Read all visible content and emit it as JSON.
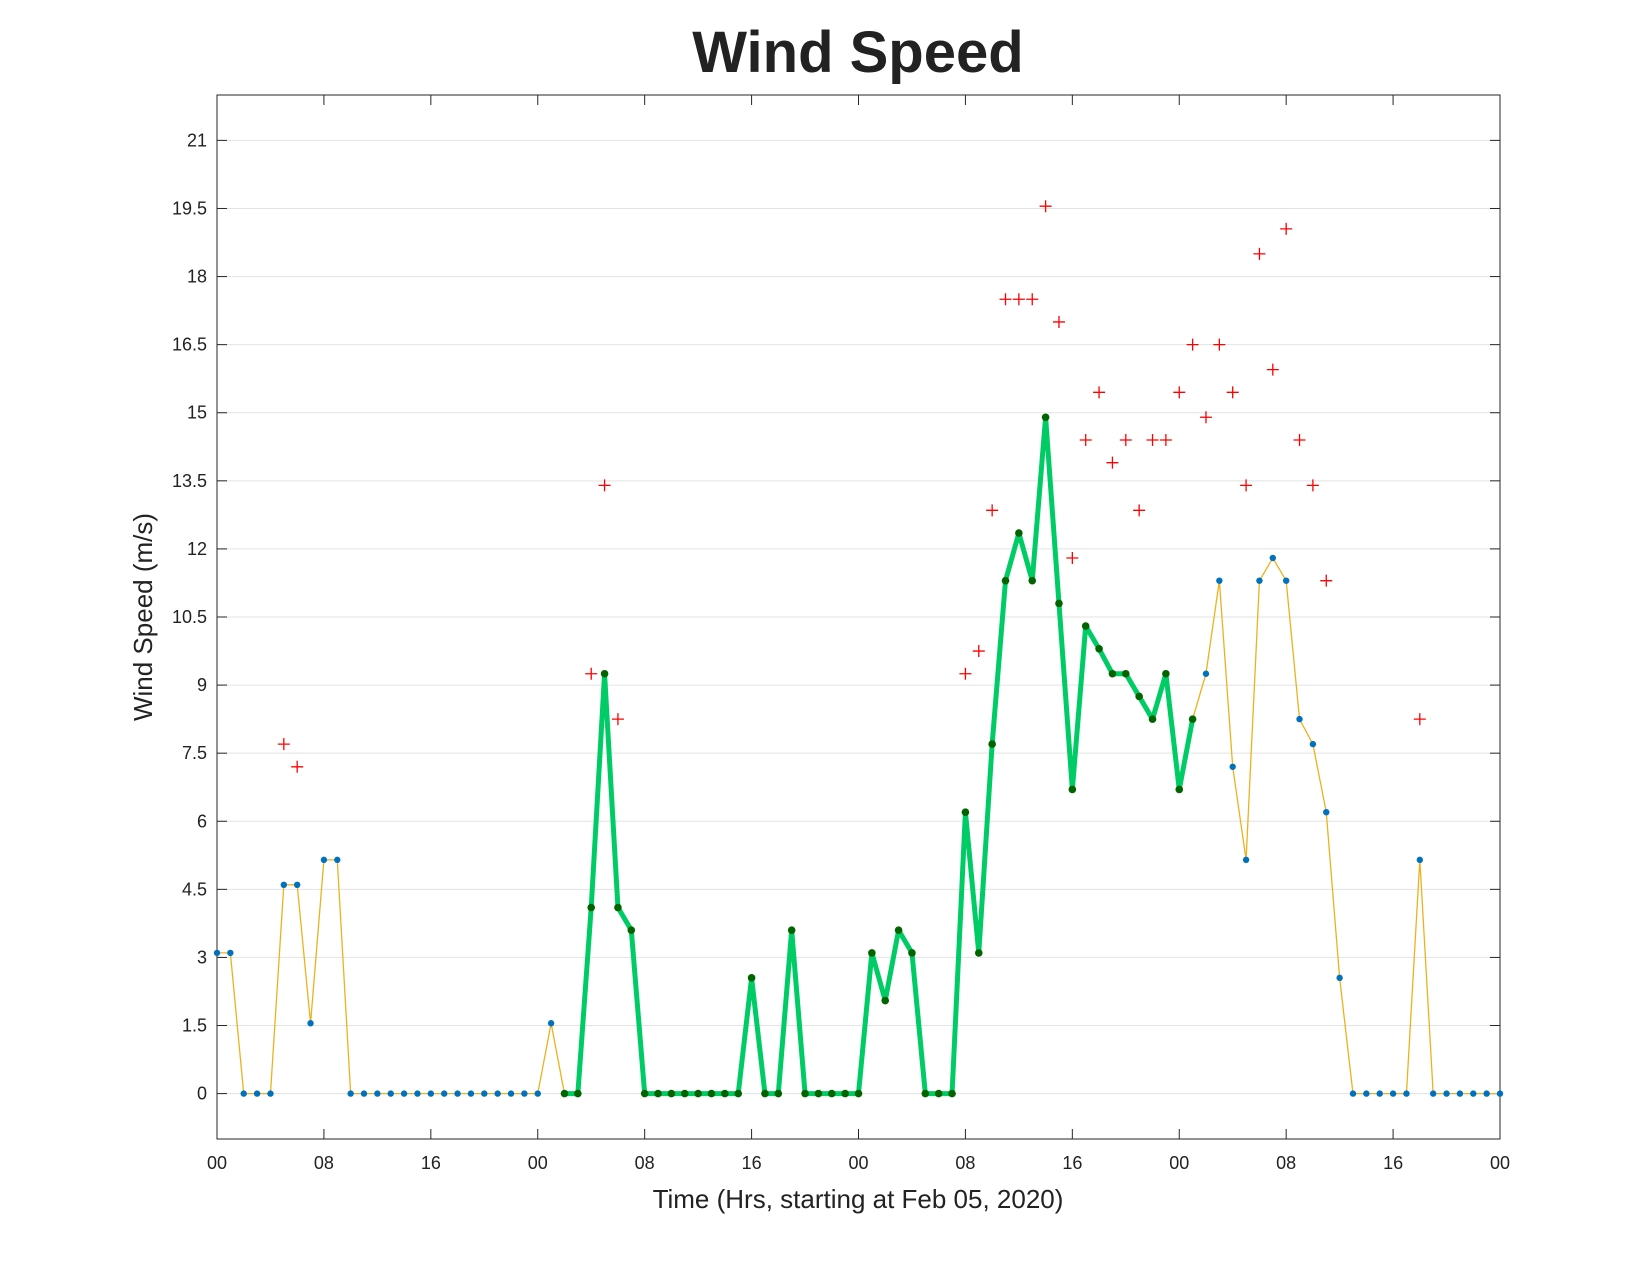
{
  "chart_data": {
    "type": "line",
    "title": "Wind Speed",
    "xlabel": "Time (Hrs, starting at Feb 05, 2020)",
    "ylabel": "Wind Speed (m/s)",
    "x": [
      0,
      1,
      2,
      3,
      4,
      5,
      6,
      7,
      8,
      9,
      10,
      11,
      12,
      13,
      14,
      15,
      16,
      17,
      18,
      19,
      20,
      21,
      22,
      23,
      24,
      25,
      26,
      27,
      28,
      29,
      30,
      31,
      32,
      33,
      34,
      35,
      36,
      37,
      38,
      39,
      40,
      41,
      42,
      43,
      44,
      45,
      46,
      47,
      48,
      49,
      50,
      51,
      52,
      53,
      54,
      55,
      56,
      57,
      58,
      59,
      60,
      61,
      62,
      63,
      64,
      65,
      66,
      67,
      68,
      69,
      70,
      71,
      72,
      73,
      74,
      75,
      76,
      77,
      78,
      79,
      80,
      81,
      82,
      83,
      84,
      85,
      86,
      87,
      88,
      89,
      90,
      91,
      92,
      93,
      94,
      95,
      96
    ],
    "xlim": [
      0,
      96
    ],
    "xticks": [
      {
        "value": 0,
        "label": "00"
      },
      {
        "value": 8,
        "label": "08"
      },
      {
        "value": 16,
        "label": "16"
      },
      {
        "value": 24,
        "label": "00"
      },
      {
        "value": 32,
        "label": "08"
      },
      {
        "value": 40,
        "label": "16"
      },
      {
        "value": 48,
        "label": "00"
      },
      {
        "value": 56,
        "label": "08"
      },
      {
        "value": 64,
        "label": "16"
      },
      {
        "value": 72,
        "label": "00"
      },
      {
        "value": 80,
        "label": "08"
      },
      {
        "value": 88,
        "label": "16"
      },
      {
        "value": 96,
        "label": "00"
      }
    ],
    "ylim": [
      -1,
      22
    ],
    "yticks": [
      0,
      1.5,
      3,
      4.5,
      6,
      7.5,
      9,
      10.5,
      12,
      13.5,
      15,
      16.5,
      18,
      19.5,
      21
    ],
    "grid": true,
    "series": [
      {
        "type": "line",
        "color": "#edb120",
        "marker_color": "#0072bd",
        "highlight": {
          "x": [
            26,
            73
          ],
          "color": "#00cc66",
          "marker_color": "#006400"
        },
        "values": [
          3.1,
          3.1,
          0,
          0,
          0,
          4.6,
          4.6,
          1.55,
          5.15,
          5.15,
          0,
          0,
          0,
          0,
          0,
          0,
          0,
          0,
          0,
          0,
          0,
          0,
          0,
          0,
          0,
          1.55,
          0,
          0,
          4.1,
          9.25,
          4.1,
          3.6,
          0,
          0,
          0,
          0,
          0,
          0,
          0,
          0,
          2.55,
          0,
          0,
          3.6,
          0,
          0,
          0,
          0,
          0,
          3.1,
          2.05,
          3.6,
          3.1,
          0,
          0,
          0,
          6.2,
          3.1,
          7.7,
          11.3,
          12.35,
          11.3,
          14.9,
          10.8,
          6.7,
          10.3,
          9.8,
          9.25,
          9.25,
          8.75,
          8.25,
          9.25,
          6.7,
          8.25,
          9.25,
          11.3,
          7.2,
          5.15,
          11.3,
          11.8,
          11.3,
          8.25,
          7.7,
          6.2,
          2.55,
          0,
          0,
          0,
          0,
          0,
          5.15,
          0,
          0,
          0,
          0,
          0,
          0
        ]
      },
      {
        "type": "scatter",
        "color": "#ff0000",
        "marker": "+",
        "values": [
          null,
          null,
          null,
          null,
          null,
          7.7,
          7.2,
          null,
          null,
          null,
          null,
          null,
          null,
          null,
          null,
          null,
          null,
          null,
          null,
          null,
          null,
          null,
          null,
          null,
          null,
          null,
          null,
          null,
          9.25,
          13.4,
          8.25,
          null,
          null,
          null,
          null,
          null,
          null,
          null,
          null,
          null,
          null,
          null,
          null,
          null,
          null,
          null,
          null,
          null,
          null,
          null,
          null,
          null,
          null,
          null,
          null,
          null,
          9.25,
          9.75,
          12.85,
          17.5,
          17.5,
          17.5,
          19.55,
          17,
          11.8,
          14.4,
          15.45,
          13.9,
          14.4,
          12.85,
          14.4,
          14.4,
          15.45,
          16.5,
          14.9,
          16.5,
          15.45,
          13.4,
          18.5,
          15.95,
          19.05,
          14.4,
          13.4,
          11.3,
          null,
          null,
          null,
          null,
          null,
          null,
          8.25,
          null,
          null,
          null,
          null,
          null,
          null
        ]
      }
    ]
  }
}
